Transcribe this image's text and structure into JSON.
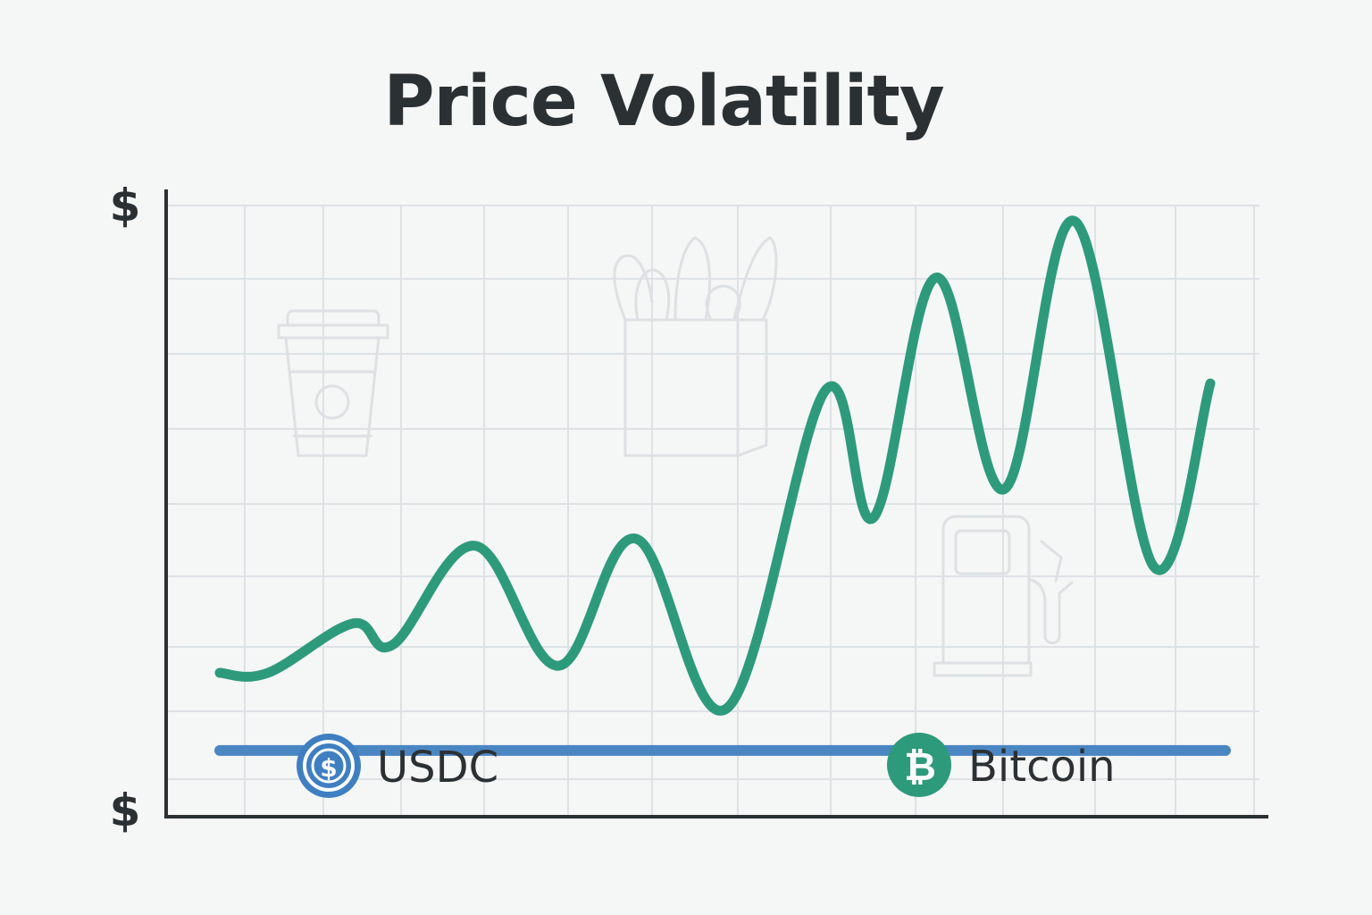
{
  "chart_data": {
    "type": "line",
    "title": "Price Volatility",
    "y_axis_top_label": "$",
    "y_axis_bottom_label": "$",
    "xlabel": "",
    "ylabel": "",
    "grid": true,
    "x": [
      0,
      1,
      2,
      3,
      4,
      5,
      6,
      7,
      8,
      9,
      10,
      11,
      12,
      13,
      14,
      15,
      16,
      17
    ],
    "ylim": [
      0,
      100
    ],
    "series": [
      {
        "name": "Bitcoin",
        "color": "#2e9a7c",
        "values": [
          30,
          30,
          37,
          34,
          48,
          31,
          49,
          25,
          70,
          52,
          86,
          56,
          94,
          45,
          71,
          71,
          71,
          71
        ]
      },
      {
        "name": "USDC",
        "color": "#4a86c2",
        "values": [
          19,
          19,
          19,
          19,
          19,
          19,
          19,
          19,
          19,
          19,
          19,
          19,
          19,
          19,
          19,
          19,
          19,
          19
        ]
      }
    ],
    "legend": {
      "placement": "bottom",
      "items": [
        {
          "label": "USDC",
          "icon": "usdc-coin-icon",
          "color": "#4a86c2"
        },
        {
          "label": "Bitcoin",
          "icon": "bitcoin-coin-icon",
          "color": "#2e9a7c"
        }
      ]
    },
    "background_icons": [
      "coffee-cup-icon",
      "grocery-bag-icon",
      "gas-pump-icon"
    ]
  }
}
